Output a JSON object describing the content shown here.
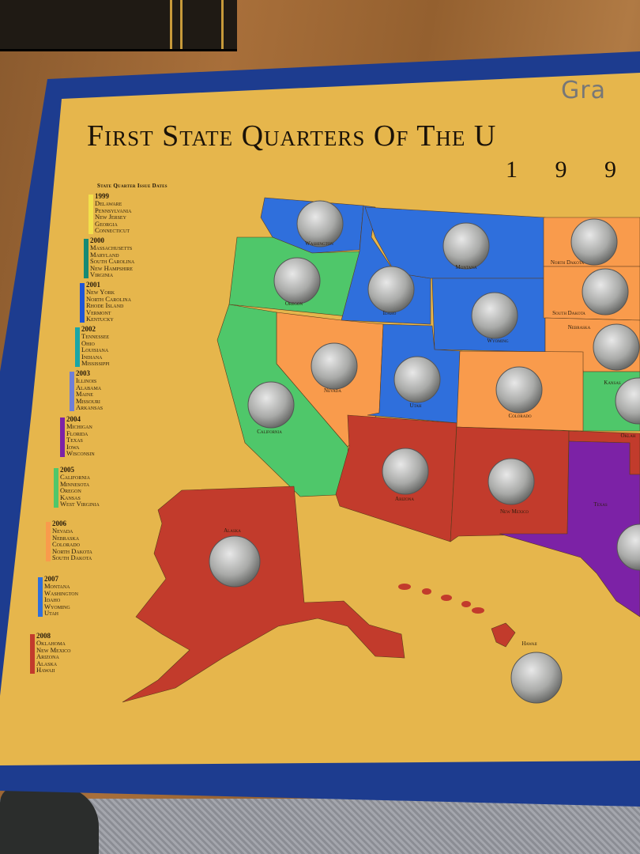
{
  "board": {
    "title": "First State Quarters Of The U",
    "year": "1 9 9",
    "handwriting": "Gra",
    "colors": {
      "board": "#e6b64c",
      "frame": "#1d3c8f",
      "blue": "#2f6fdc",
      "green": "#4fc76a",
      "orange": "#f99b4c",
      "red": "#c23b2c",
      "purple": "#7c22a6"
    }
  },
  "legend": {
    "heading": "State Quarter Issue Dates",
    "groups": [
      {
        "year": "1999",
        "color": "#f2e04a",
        "states": [
          "Delaware",
          "Pennsylvania",
          "New Jersey",
          "Georgia",
          "Connecticut"
        ]
      },
      {
        "year": "2000",
        "color": "#168a74",
        "states": [
          "Massachusetts",
          "Maryland",
          "South Carolina",
          "New Hampshire",
          "Virginia"
        ]
      },
      {
        "year": "2001",
        "color": "#1f55d6",
        "states": [
          "New York",
          "North Carolina",
          "Rhode Island",
          "Vermont",
          "Kentucky"
        ]
      },
      {
        "year": "2002",
        "color": "#1aa6a6",
        "states": [
          "Tennessee",
          "Ohio",
          "Louisiana",
          "Indiana",
          "Mississippi"
        ]
      },
      {
        "year": "2003",
        "color": "#6f7fd6",
        "states": [
          "Illinois",
          "Alabama",
          "Maine",
          "Missouri",
          "Arkansas"
        ]
      },
      {
        "year": "2004",
        "color": "#7c22a6",
        "states": [
          "Michigan",
          "Florida",
          "Texas",
          "Iowa",
          "Wisconsin"
        ]
      },
      {
        "year": "2005",
        "color": "#4fc76a",
        "states": [
          "California",
          "Minnesota",
          "Oregon",
          "Kansas",
          "West Virginia"
        ]
      },
      {
        "year": "2006",
        "color": "#f99b4c",
        "states": [
          "Nevada",
          "Nebraska",
          "Colorado",
          "North Dakota",
          "South Dakota"
        ]
      },
      {
        "year": "2007",
        "color": "#2f6fdc",
        "states": [
          "Montana",
          "Washington",
          "Idaho",
          "Wyoming",
          "Utah"
        ]
      },
      {
        "year": "2008",
        "color": "#c23b2c",
        "states": [
          "Oklahoma",
          "New Mexico",
          "Arizona",
          "Alaska",
          "Hawaii"
        ]
      }
    ]
  },
  "map": {
    "states": [
      {
        "name": "Washington",
        "color": "#2f6fdc"
      },
      {
        "name": "Oregon",
        "color": "#4fc76a"
      },
      {
        "name": "Idaho",
        "color": "#2f6fdc"
      },
      {
        "name": "Montana",
        "color": "#2f6fdc"
      },
      {
        "name": "Wyoming",
        "color": "#2f6fdc"
      },
      {
        "name": "North Dakota",
        "color": "#f99b4c"
      },
      {
        "name": "South Dakota",
        "color": "#f99b4c"
      },
      {
        "name": "Nebraska",
        "color": "#f99b4c"
      },
      {
        "name": "Kansas",
        "color": "#4fc76a"
      },
      {
        "name": "Nevada",
        "color": "#f99b4c"
      },
      {
        "name": "Utah",
        "color": "#2f6fdc"
      },
      {
        "name": "Colorado",
        "color": "#f99b4c"
      },
      {
        "name": "California",
        "color": "#4fc76a"
      },
      {
        "name": "Arizona",
        "color": "#c23b2c"
      },
      {
        "name": "New Mexico",
        "color": "#c23b2c"
      },
      {
        "name": "Oklah",
        "color": "#c23b2c"
      },
      {
        "name": "Texas",
        "color": "#7c22a6"
      },
      {
        "name": "Alaska",
        "color": "#c23b2c"
      },
      {
        "name": "Hawaii",
        "color": "#c23b2c"
      }
    ]
  }
}
